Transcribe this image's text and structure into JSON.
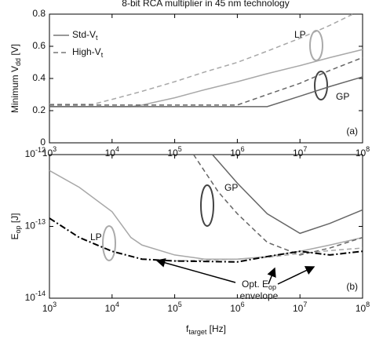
{
  "chart_data": [
    {
      "type": "line",
      "title": "8-bit RCA multiplier in 45 nm technology",
      "ylabel": "Minimum V_{dd} [V]",
      "panel": "(a)",
      "xscale": "log",
      "xlim": [
        1000,
        100000000
      ],
      "ylim": [
        0,
        0.8
      ],
      "xticks": [
        {
          "value": 1000,
          "label": "10^{3}"
        },
        {
          "value": 10000,
          "label": "10^{4}"
        },
        {
          "value": 100000,
          "label": "10^{5}"
        },
        {
          "value": 1000000,
          "label": "10^{6}"
        },
        {
          "value": 10000000,
          "label": "10^{7}"
        },
        {
          "value": 100000000,
          "label": "10^{8}"
        }
      ],
      "yticks": [
        0,
        0.2,
        0.4,
        0.6,
        0.8
      ],
      "legend": [
        {
          "name": "Std-V_{t}",
          "dash": "solid"
        },
        {
          "name": "High-V_{t}",
          "dash": "dashed"
        }
      ],
      "labels": [
        "LP",
        "GP"
      ],
      "series": [
        {
          "color": "#a8a8a8",
          "dash": "solid",
          "x": [
            1000,
            3000,
            10000,
            20000,
            30000,
            100000,
            300000,
            1000000,
            3000000,
            10000000,
            30000000,
            100000000
          ],
          "values": [
            0.225,
            0.225,
            0.225,
            0.225,
            0.235,
            0.28,
            0.33,
            0.38,
            0.43,
            0.48,
            0.53,
            0.58
          ]
        },
        {
          "color": "#a8a8a8",
          "dash": "dashed",
          "x": [
            1000,
            3000,
            5000,
            10000,
            30000,
            100000,
            300000,
            1000000,
            3000000,
            10000000,
            30000000,
            70000000
          ],
          "values": [
            0.24,
            0.24,
            0.24,
            0.27,
            0.32,
            0.38,
            0.44,
            0.5,
            0.57,
            0.65,
            0.73,
            0.8
          ]
        },
        {
          "color": "#666666",
          "dash": "solid",
          "x": [
            1000,
            3000000,
            10000000,
            30000000,
            100000000
          ],
          "values": [
            0.225,
            0.225,
            0.29,
            0.35,
            0.41
          ]
        },
        {
          "color": "#666666",
          "dash": "dashed",
          "x": [
            1000,
            1000000,
            3000000,
            10000000,
            30000000,
            100000000
          ],
          "values": [
            0.235,
            0.235,
            0.3,
            0.37,
            0.45,
            0.53
          ]
        }
      ]
    },
    {
      "type": "line",
      "ylabel": "E_{op} [J]",
      "xlabel": "f_{target} [Hz]",
      "panel": "(b)",
      "xscale": "log",
      "yscale": "log",
      "xlim": [
        1000,
        100000000
      ],
      "ylim": [
        1e-14,
        1e-12
      ],
      "xticks": [
        {
          "value": 1000,
          "label": "10^{3}"
        },
        {
          "value": 10000,
          "label": "10^{4}"
        },
        {
          "value": 100000,
          "label": "10^{5}"
        },
        {
          "value": 1000000,
          "label": "10^{6}"
        },
        {
          "value": 10000000,
          "label": "10^{7}"
        },
        {
          "value": 100000000,
          "label": "10^{8}"
        }
      ],
      "yticks": [
        {
          "value": 1e-14,
          "label": "10^{-14}"
        },
        {
          "value": 1e-13,
          "label": "10^{-13}"
        },
        {
          "value": 1e-12,
          "label": "10^{-12}"
        }
      ],
      "labels": [
        "LP",
        "GP"
      ],
      "annotation": [
        "Opt. E_{op}",
        "envelope"
      ],
      "series": [
        {
          "color": "#a8a8a8",
          "dash": "solid",
          "x": [
            1000,
            3000,
            10000,
            20000,
            30000,
            100000,
            300000,
            1000000,
            3000000,
            10000000,
            30000000,
            100000000
          ],
          "values": [
            6e-13,
            3.5e-13,
            1.6e-13,
            7e-14,
            5.5e-14,
            4e-14,
            3.5e-14,
            3.5e-14,
            3.8e-14,
            4.5e-14,
            5.5e-14,
            7e-14
          ]
        },
        {
          "color": "#a8a8a8",
          "dash": "dashed",
          "x": [
            100000,
            1000000,
            3000000,
            10000000,
            30000000,
            100000000
          ],
          "values": [
            3.3e-14,
            3.5e-14,
            3.7e-14,
            4.2e-14,
            4.6e-14,
            5e-14
          ]
        },
        {
          "color": "#666666",
          "dash": "solid",
          "x": [
            400000,
            1000000,
            3000000,
            10000000,
            30000000,
            100000000
          ],
          "values": [
            1e-12,
            4e-13,
            1.5e-13,
            8e-14,
            1.1e-13,
            1.7e-13
          ]
        },
        {
          "color": "#666666",
          "dash": "dashed",
          "x": [
            200000,
            500000,
            1000000,
            3000000,
            10000000,
            30000000,
            100000000
          ],
          "values": [
            1e-12,
            3e-13,
            1.5e-13,
            6e-14,
            4e-14,
            5e-14,
            7e-14
          ]
        },
        {
          "color": "#000000",
          "dash": "dashdot",
          "x": [
            1000,
            3000,
            10000,
            30000,
            100000,
            1000000,
            3000000,
            10000000,
            30000000,
            100000000
          ],
          "values": [
            1.3e-13,
            7e-14,
            4.5e-14,
            3.5e-14,
            3.3e-14,
            3.2e-14,
            3.8e-14,
            4.5e-14,
            4e-14,
            4.5e-14
          ]
        }
      ]
    }
  ]
}
